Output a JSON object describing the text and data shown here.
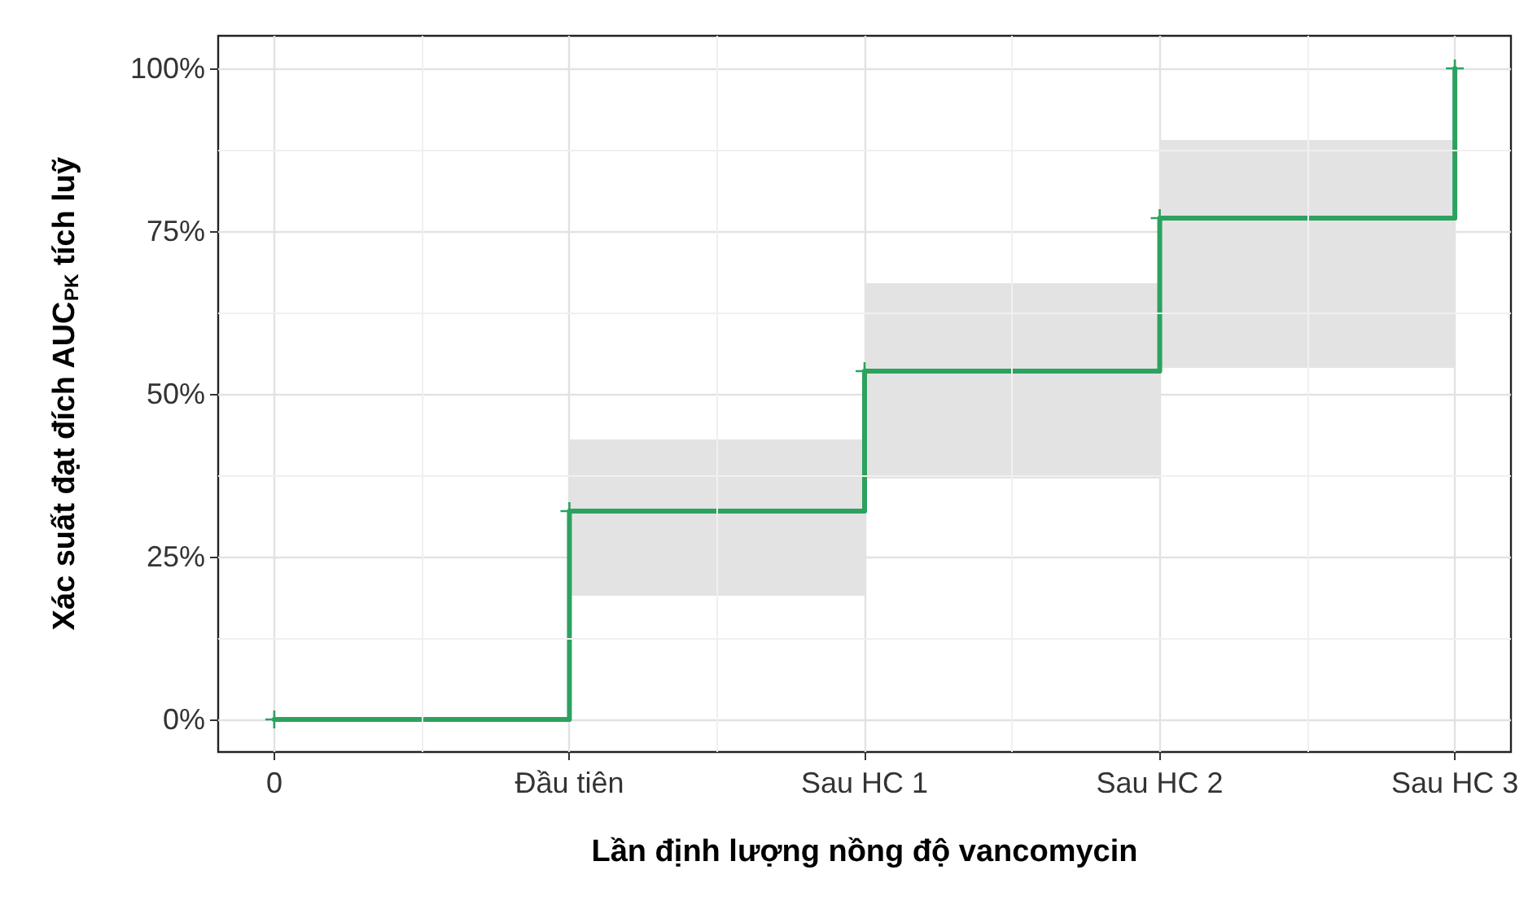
{
  "chart_data": {
    "type": "step",
    "xlabel": "Lần định lượng nồng độ vancomycin",
    "ylabel": "Xác suất đạt đích AUC$_{PK}$ tích luỹ",
    "categories": [
      "0",
      "Đầu tiên",
      "Sau HC 1",
      "Sau HC 2",
      "Sau HC 3"
    ],
    "series": [
      {
        "color": "#2ca25f",
        "values": [
          0,
          32,
          53.5,
          77,
          100
        ],
        "lower": [
          null,
          19,
          37,
          54,
          54
        ],
        "upper": [
          null,
          43,
          67,
          89,
          89
        ]
      }
    ],
    "ylim": [
      -5,
      105
    ],
    "yticks": [
      {
        "value": 0,
        "label": "0%"
      },
      {
        "value": 25,
        "label": "25%"
      },
      {
        "value": 50,
        "label": "50%"
      },
      {
        "value": 75,
        "label": "75%"
      },
      {
        "value": 100,
        "label": "100%"
      }
    ],
    "grid": true,
    "marker": "cross",
    "line_style": "solid"
  }
}
